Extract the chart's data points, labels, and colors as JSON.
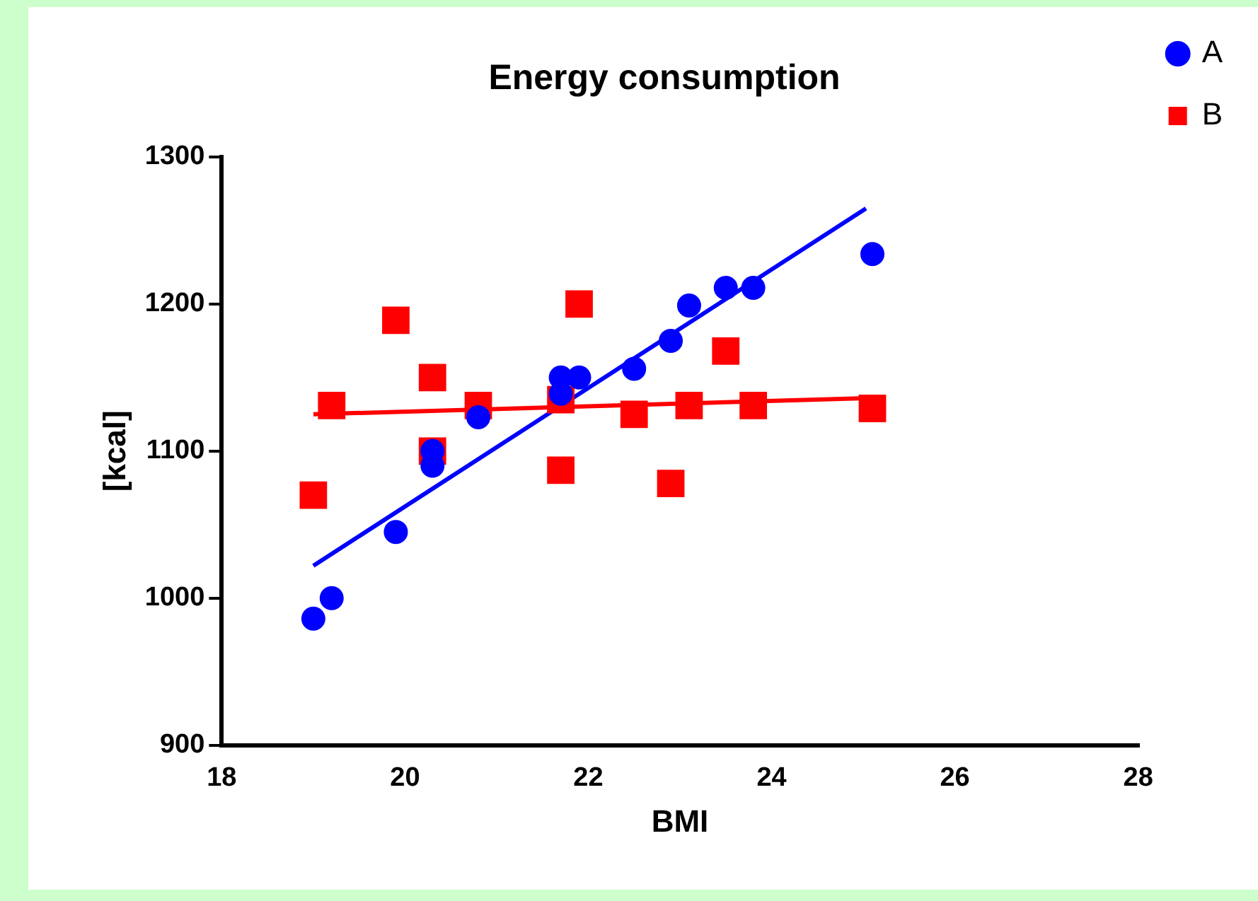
{
  "chart_data": {
    "type": "scatter",
    "title": "Energy consumption",
    "xlabel": "BMI",
    "ylabel": "[kcal]",
    "xlim": [
      18,
      28
    ],
    "xticks": [
      18,
      20,
      22,
      24,
      26,
      28
    ],
    "ylim": [
      900,
      1300
    ],
    "yticks": [
      900,
      1000,
      1100,
      1200,
      1300
    ],
    "grid": false,
    "legend": "top right",
    "series": [
      {
        "name": "A",
        "type": "scatter",
        "color": "#0000ff",
        "marker": "circle",
        "x": [
          19.0,
          19.2,
          19.9,
          20.3,
          20.3,
          20.8,
          21.7,
          21.7,
          21.9,
          22.5,
          22.9,
          23.1,
          23.5,
          23.8,
          25.1
        ],
        "values": [
          986,
          1000,
          1045,
          1100,
          1090,
          1123,
          1150,
          1139,
          1150,
          1156,
          1175,
          1199,
          1211,
          1211,
          1234
        ]
      },
      {
        "name": "B",
        "type": "scatter",
        "color": "#ff0000",
        "marker": "square",
        "x": [
          19.0,
          19.2,
          19.9,
          20.3,
          20.3,
          20.8,
          21.7,
          21.7,
          21.9,
          22.5,
          22.9,
          23.1,
          23.5,
          23.8,
          25.1
        ],
        "values": [
          1070,
          1131,
          1189,
          1150,
          1100,
          1131,
          1135,
          1087,
          1200,
          1125,
          1078,
          1131,
          1168,
          1131,
          1129
        ]
      },
      {
        "type": "line",
        "color": "#0000ff",
        "marker": "none",
        "line_style": "solid",
        "x": [
          19.0,
          25.03
        ],
        "values": [
          1022,
          1265
        ]
      },
      {
        "type": "line",
        "color": "#ff0000",
        "marker": "none",
        "line_style": "solid",
        "x": [
          19.0,
          25.03
        ],
        "values": [
          1125,
          1136
        ]
      }
    ]
  }
}
